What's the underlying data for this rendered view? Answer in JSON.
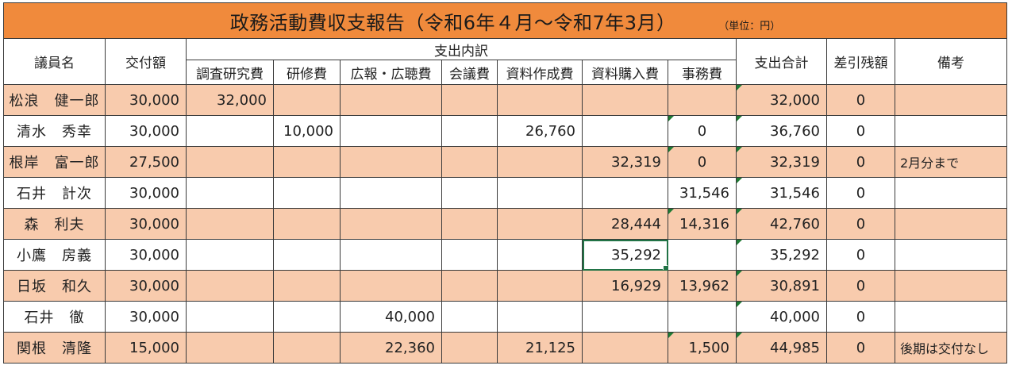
{
  "title": {
    "main": "政務活動費収支報告（令和6年４月～令和7年3月）",
    "unit": "（単位：円）"
  },
  "headers": {
    "name": "議員名",
    "grant": "交付額",
    "breakdown": "支出内訳",
    "categories": [
      "調査研究費",
      "研修費",
      "広報・広聴費",
      "会議費",
      "資料作成費",
      "資料購入費",
      "事務費"
    ],
    "total": "支出合計",
    "balance": "差引残額",
    "note": "備考"
  },
  "rows": [
    {
      "name": "松浪　健一郎",
      "grant": "30,000",
      "c1": "32,000",
      "c2": "",
      "c3": "",
      "c4": "",
      "c5": "",
      "c6": "",
      "c7": "",
      "total": "32,000",
      "balance": "0",
      "note": ""
    },
    {
      "name": "清水　秀幸",
      "grant": "30,000",
      "c1": "",
      "c2": "10,000",
      "c3": "",
      "c4": "",
      "c5": "26,760",
      "c6": "",
      "c7": "0",
      "total": "36,760",
      "balance": "0",
      "note": ""
    },
    {
      "name": "根岸　富一郎",
      "grant": "27,500",
      "c1": "",
      "c2": "",
      "c3": "",
      "c4": "",
      "c5": "",
      "c6": "32,319",
      "c7": "0",
      "total": "32,319",
      "balance": "0",
      "note": "2月分まで"
    },
    {
      "name": "石井　計次",
      "grant": "30,000",
      "c1": "",
      "c2": "",
      "c3": "",
      "c4": "",
      "c5": "",
      "c6": "",
      "c7": "31,546",
      "total": "31,546",
      "balance": "0",
      "note": ""
    },
    {
      "name": "森　利夫",
      "grant": "30,000",
      "c1": "",
      "c2": "",
      "c3": "",
      "c4": "",
      "c5": "",
      "c6": "28,444",
      "c7": "14,316",
      "total": "42,760",
      "balance": "0",
      "note": ""
    },
    {
      "name": "小鷹　房義",
      "grant": "30,000",
      "c1": "",
      "c2": "",
      "c3": "",
      "c4": "",
      "c5": "",
      "c6": "35,292",
      "c7": "",
      "total": "35,292",
      "balance": "0",
      "note": ""
    },
    {
      "name": "日坂　和久",
      "grant": "30,000",
      "c1": "",
      "c2": "",
      "c3": "",
      "c4": "",
      "c5": "",
      "c6": "16,929",
      "c7": "13,962",
      "total": "30,891",
      "balance": "0",
      "note": ""
    },
    {
      "name": "石井　徹",
      "grant": "30,000",
      "c1": "",
      "c2": "",
      "c3": "40,000",
      "c4": "",
      "c5": "",
      "c6": "",
      "c7": "",
      "total": "40,000",
      "balance": "0",
      "note": ""
    },
    {
      "name": "関根　清隆",
      "grant": "15,000",
      "c1": "",
      "c2": "",
      "c3": "22,360",
      "c4": "",
      "c5": "21,125",
      "c6": "",
      "c7": "1,500",
      "total": "44,985",
      "balance": "0",
      "note": "後期は交付なし"
    }
  ],
  "colors": {
    "title_bg": "#f08a3c",
    "shade_row_bg": "#f8cbad",
    "plain_row_bg": "#ffffff",
    "selection": "#217346",
    "comment_marker": "#1e7b34"
  }
}
